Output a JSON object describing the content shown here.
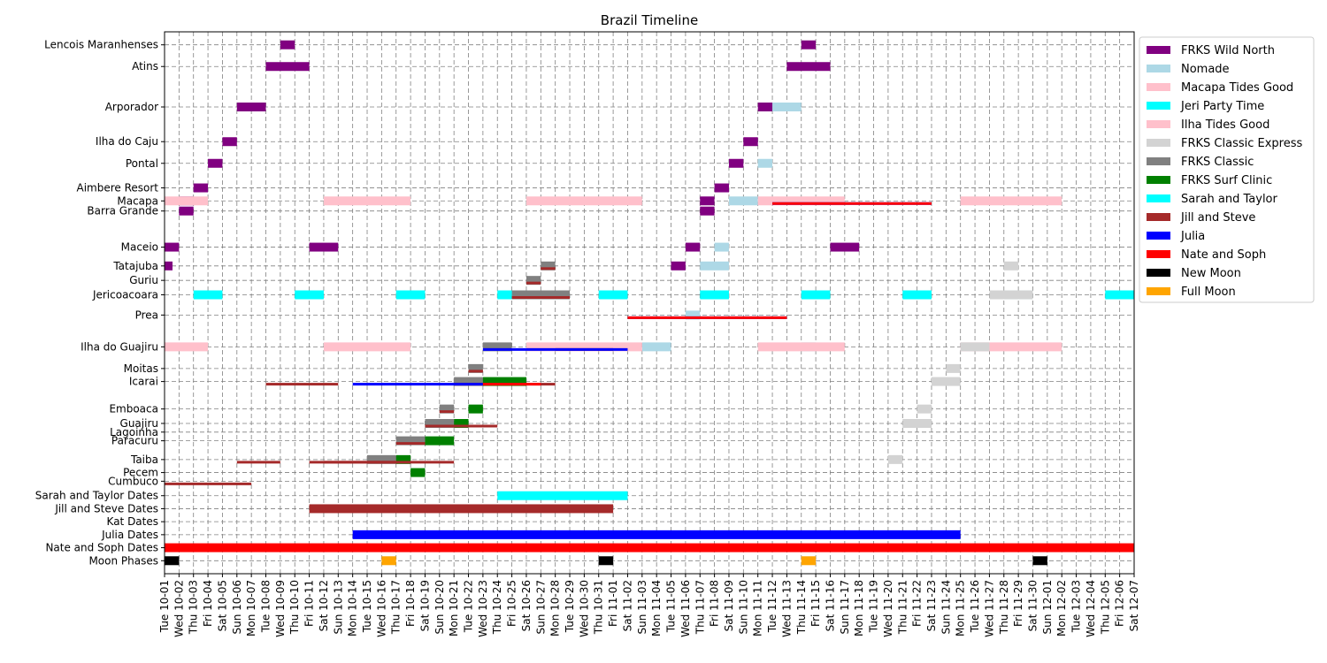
{
  "chart_data": {
    "type": "timeline",
    "title": "Brazil Timeline",
    "x_start": "2024-10-01",
    "x_end": "2024-12-07",
    "grid": true,
    "legend_position": "outside-right",
    "xticks": [
      "Tue 10-01",
      "Wed 10-02",
      "Thu 10-03",
      "Fri 10-04",
      "Sat 10-05",
      "Sun 10-06",
      "Mon 10-07",
      "Tue 10-08",
      "Wed 10-09",
      "Thu 10-10",
      "Fri 10-11",
      "Sat 10-12",
      "Sun 10-13",
      "Mon 10-14",
      "Tue 10-15",
      "Wed 10-16",
      "Thu 10-17",
      "Fri 10-18",
      "Sat 10-19",
      "Sun 10-20",
      "Mon 10-21",
      "Tue 10-22",
      "Wed 10-23",
      "Thu 10-24",
      "Fri 10-25",
      "Sat 10-26",
      "Sun 10-27",
      "Mon 10-28",
      "Tue 10-29",
      "Wed 10-30",
      "Thu 10-31",
      "Fri 11-01",
      "Sat 11-02",
      "Sun 11-03",
      "Mon 11-04",
      "Tue 11-05",
      "Wed 11-06",
      "Thu 11-07",
      "Fri 11-08",
      "Sat 11-09",
      "Sun 11-10",
      "Mon 11-11",
      "Tue 11-12",
      "Wed 11-13",
      "Thu 11-14",
      "Fri 11-15",
      "Sat 11-16",
      "Sun 11-17",
      "Mon 11-18",
      "Tue 11-19",
      "Wed 11-20",
      "Thu 11-21",
      "Fri 11-22",
      "Sat 11-23",
      "Sun 11-24",
      "Mon 11-25",
      "Tue 11-26",
      "Wed 11-27",
      "Thu 11-28",
      "Fri 11-29",
      "Sat 11-30",
      "Sun 12-01",
      "Mon 12-02",
      "Tue 12-03",
      "Wed 12-04",
      "Thu 12-05",
      "Fri 12-06",
      "Sat 12-07"
    ],
    "rows": [
      {
        "label": "Lencois Maranhenses",
        "y": 0.0
      },
      {
        "label": "Atins",
        "y": 1.5
      },
      {
        "label": "Arporador",
        "y": 4.3
      },
      {
        "label": "Ilha do Caju",
        "y": 6.7
      },
      {
        "label": "Pontal",
        "y": 8.2
      },
      {
        "label": "Aimbere Resort",
        "y": 9.9
      },
      {
        "label": "Macapa",
        "y": 10.8
      },
      {
        "label": "Barra Grande",
        "y": 11.5
      },
      {
        "label": "Maceio",
        "y": 14.0
      },
      {
        "label": "Tatajuba",
        "y": 15.3
      },
      {
        "label": "Guriu",
        "y": 16.3
      },
      {
        "label": "Jericoacoara",
        "y": 17.3
      },
      {
        "label": "Prea",
        "y": 18.7
      },
      {
        "label": "Ilha do Guajiru",
        "y": 20.9
      },
      {
        "label": "Moitas",
        "y": 22.4
      },
      {
        "label": "Icarai",
        "y": 23.3
      },
      {
        "label": "Emboaca",
        "y": 25.2
      },
      {
        "label": "Guajiru",
        "y": 26.2
      },
      {
        "label": "Lagoinha",
        "y": 26.8
      },
      {
        "label": "Paracuru",
        "y": 27.4
      },
      {
        "label": "Taiba",
        "y": 28.7
      },
      {
        "label": "Pecem",
        "y": 29.6
      },
      {
        "label": "Cumbuco",
        "y": 30.2
      },
      {
        "label": "Sarah and Taylor Dates",
        "y": 31.2
      },
      {
        "label": "Jill and Steve Dates",
        "y": 32.1
      },
      {
        "label": "Kat Dates",
        "y": 33.0
      },
      {
        "label": "Julia Dates",
        "y": 33.9
      },
      {
        "label": "Nate and Soph Dates",
        "y": 34.8
      },
      {
        "label": "Moon Phases",
        "y": 35.7
      }
    ],
    "legend": [
      {
        "name": "FRKS Wild North",
        "color": "#800080"
      },
      {
        "name": "Nomade",
        "color": "#add8e6"
      },
      {
        "name": "Macapa Tides Good",
        "color": "#ffc0cb"
      },
      {
        "name": "Jeri Party Time",
        "color": "#00ffff"
      },
      {
        "name": "Ilha Tides Good",
        "color": "#ffc0cb"
      },
      {
        "name": "FRKS Classic Express",
        "color": "#d3d3d3"
      },
      {
        "name": "FRKS Classic",
        "color": "#808080"
      },
      {
        "name": "FRKS Surf Clinic",
        "color": "#008000"
      },
      {
        "name": "Sarah and Taylor",
        "color": "#00ffff"
      },
      {
        "name": "Jill and Steve",
        "color": "#a52a2a"
      },
      {
        "name": "Julia",
        "color": "#0000ff"
      },
      {
        "name": "Nate and Soph",
        "color": "#ff0000"
      },
      {
        "name": "New Moon",
        "color": "#000000"
      },
      {
        "name": "Full Moon",
        "color": "#ffa500"
      }
    ],
    "bars": [
      {
        "series": "FRKS Wild North",
        "row": "Lencois Maranhenses",
        "start": "2024-10-09",
        "end": "2024-10-10"
      },
      {
        "series": "FRKS Wild North",
        "row": "Atins",
        "start": "2024-10-08",
        "end": "2024-10-11"
      },
      {
        "series": "FRKS Wild North",
        "row": "Arporador",
        "start": "2024-10-06",
        "end": "2024-10-08"
      },
      {
        "series": "FRKS Wild North",
        "row": "Ilha do Caju",
        "start": "2024-10-05",
        "end": "2024-10-06"
      },
      {
        "series": "FRKS Wild North",
        "row": "Pontal",
        "start": "2024-10-04",
        "end": "2024-10-05"
      },
      {
        "series": "FRKS Wild North",
        "row": "Aimbere Resort",
        "start": "2024-10-03",
        "end": "2024-10-04"
      },
      {
        "series": "FRKS Wild North",
        "row": "Macapa",
        "start": "2024-10-02",
        "end": "2024-10-03"
      },
      {
        "series": "FRKS Wild North",
        "row": "Barra Grande",
        "start": "2024-10-02",
        "end": "2024-10-03"
      },
      {
        "series": "FRKS Wild North",
        "row": "Maceio",
        "start": "2024-10-01",
        "end": "2024-10-02"
      },
      {
        "series": "FRKS Wild North",
        "row": "Maceio",
        "start": "2024-10-11",
        "end": "2024-10-13"
      },
      {
        "series": "FRKS Wild North",
        "row": "Tatajuba",
        "start": "2024-10-01",
        "end": "2024-10-01"
      },
      {
        "series": "FRKS Wild North",
        "row": "Lencois Maranhenses",
        "start": "2024-11-14",
        "end": "2024-11-15"
      },
      {
        "series": "FRKS Wild North",
        "row": "Atins",
        "start": "2024-11-13",
        "end": "2024-11-16"
      },
      {
        "series": "FRKS Wild North",
        "row": "Arporador",
        "start": "2024-11-11",
        "end": "2024-11-13"
      },
      {
        "series": "FRKS Wild North",
        "row": "Ilha do Caju",
        "start": "2024-11-10",
        "end": "2024-11-11"
      },
      {
        "series": "FRKS Wild North",
        "row": "Pontal",
        "start": "2024-11-09",
        "end": "2024-11-10"
      },
      {
        "series": "FRKS Wild North",
        "row": "Aimbere Resort",
        "start": "2024-11-08",
        "end": "2024-11-09"
      },
      {
        "series": "FRKS Wild North",
        "row": "Macapa",
        "start": "2024-11-07",
        "end": "2024-11-08"
      },
      {
        "series": "FRKS Wild North",
        "row": "Barra Grande",
        "start": "2024-11-07",
        "end": "2024-11-08"
      },
      {
        "series": "FRKS Wild North",
        "row": "Maceio",
        "start": "2024-11-06",
        "end": "2024-11-07"
      },
      {
        "series": "FRKS Wild North",
        "row": "Maceio",
        "start": "2024-11-16",
        "end": "2024-11-18"
      },
      {
        "series": "FRKS Wild North",
        "row": "Tatajuba",
        "start": "2024-11-05",
        "end": "2024-11-06"
      },
      {
        "series": "Nomade",
        "row": "Arporador",
        "start": "2024-11-12",
        "end": "2024-11-14"
      },
      {
        "series": "Nomade",
        "row": "Pontal",
        "start": "2024-11-11",
        "end": "2024-11-12"
      },
      {
        "series": "Nomade",
        "row": "Macapa",
        "start": "2024-11-09",
        "end": "2024-11-11"
      },
      {
        "series": "Nomade",
        "row": "Maceio",
        "start": "2024-11-08",
        "end": "2024-11-09"
      },
      {
        "series": "Nomade",
        "row": "Tatajuba",
        "start": "2024-11-07",
        "end": "2024-11-09"
      },
      {
        "series": "Nomade",
        "row": "Prea",
        "start": "2024-11-06",
        "end": "2024-11-07"
      },
      {
        "series": "Nomade",
        "row": "Ilha do Guajiru",
        "start": "2024-11-03",
        "end": "2024-11-05"
      },
      {
        "series": "Nomade",
        "row": "Ilha do Guajiru",
        "start": "2024-11-14",
        "end": "2024-11-15"
      },
      {
        "series": "Macapa Tides Good",
        "row": "Macapa",
        "start": "2024-10-01",
        "end": "2024-10-04"
      },
      {
        "series": "Macapa Tides Good",
        "row": "Macapa",
        "start": "2024-10-12",
        "end": "2024-10-18"
      },
      {
        "series": "Macapa Tides Good",
        "row": "Macapa",
        "start": "2024-10-26",
        "end": "2024-11-03"
      },
      {
        "series": "Macapa Tides Good",
        "row": "Macapa",
        "start": "2024-11-11",
        "end": "2024-11-17"
      },
      {
        "series": "Macapa Tides Good",
        "row": "Macapa",
        "start": "2024-11-25",
        "end": "2024-12-02"
      },
      {
        "series": "Ilha Tides Good",
        "row": "Ilha do Guajiru",
        "start": "2024-10-01",
        "end": "2024-10-04"
      },
      {
        "series": "Ilha Tides Good",
        "row": "Ilha do Guajiru",
        "start": "2024-10-12",
        "end": "2024-10-18"
      },
      {
        "series": "Ilha Tides Good",
        "row": "Ilha do Guajiru",
        "start": "2024-10-26",
        "end": "2024-11-03"
      },
      {
        "series": "Ilha Tides Good",
        "row": "Ilha do Guajiru",
        "start": "2024-11-11",
        "end": "2024-11-17"
      },
      {
        "series": "Ilha Tides Good",
        "row": "Ilha do Guajiru",
        "start": "2024-11-25",
        "end": "2024-12-02"
      },
      {
        "series": "Jeri Party Time",
        "row": "Jericoacoara",
        "start": "2024-10-03",
        "end": "2024-10-05"
      },
      {
        "series": "Jeri Party Time",
        "row": "Jericoacoara",
        "start": "2024-10-10",
        "end": "2024-10-12"
      },
      {
        "series": "Jeri Party Time",
        "row": "Jericoacoara",
        "start": "2024-10-17",
        "end": "2024-10-19"
      },
      {
        "series": "Jeri Party Time",
        "row": "Jericoacoara",
        "start": "2024-10-24",
        "end": "2024-10-26"
      },
      {
        "series": "Jeri Party Time",
        "row": "Jericoacoara",
        "start": "2024-10-31",
        "end": "2024-11-02"
      },
      {
        "series": "Jeri Party Time",
        "row": "Jericoacoara",
        "start": "2024-11-07",
        "end": "2024-11-09"
      },
      {
        "series": "Jeri Party Time",
        "row": "Jericoacoara",
        "start": "2024-11-14",
        "end": "2024-11-16"
      },
      {
        "series": "Jeri Party Time",
        "row": "Jericoacoara",
        "start": "2024-11-21",
        "end": "2024-11-23"
      },
      {
        "series": "Jeri Party Time",
        "row": "Jericoacoara",
        "start": "2024-11-28",
        "end": "2024-11-30"
      },
      {
        "series": "Jeri Party Time",
        "row": "Jericoacoara",
        "start": "2024-12-05",
        "end": "2024-12-07"
      },
      {
        "series": "FRKS Classic",
        "row": "Tatajuba",
        "start": "2024-10-27",
        "end": "2024-10-28"
      },
      {
        "series": "FRKS Classic",
        "row": "Guriu",
        "start": "2024-10-26",
        "end": "2024-10-27"
      },
      {
        "series": "FRKS Classic",
        "row": "Jericoacoara",
        "start": "2024-10-25",
        "end": "2024-10-29"
      },
      {
        "series": "FRKS Classic",
        "row": "Ilha do Guajiru",
        "start": "2024-10-23",
        "end": "2024-10-25"
      },
      {
        "series": "FRKS Classic",
        "row": "Moitas",
        "start": "2024-10-22",
        "end": "2024-10-23"
      },
      {
        "series": "FRKS Classic",
        "row": "Icarai",
        "start": "2024-10-21",
        "end": "2024-10-23"
      },
      {
        "series": "FRKS Classic",
        "row": "Emboaca",
        "start": "2024-10-20",
        "end": "2024-10-21"
      },
      {
        "series": "FRKS Classic",
        "row": "Guajiru",
        "start": "2024-10-19",
        "end": "2024-10-21"
      },
      {
        "series": "FRKS Classic",
        "row": "Paracuru",
        "start": "2024-10-17",
        "end": "2024-10-19"
      },
      {
        "series": "FRKS Classic",
        "row": "Taiba",
        "start": "2024-10-15",
        "end": "2024-10-17"
      },
      {
        "series": "FRKS Classic Express",
        "row": "Tatajuba",
        "start": "2024-11-28",
        "end": "2024-11-29"
      },
      {
        "series": "FRKS Classic Express",
        "row": "Jericoacoara",
        "start": "2024-11-27",
        "end": "2024-11-30"
      },
      {
        "series": "FRKS Classic Express",
        "row": "Ilha do Guajiru",
        "start": "2024-11-25",
        "end": "2024-11-27"
      },
      {
        "series": "FRKS Classic Express",
        "row": "Moitas",
        "start": "2024-11-24",
        "end": "2024-11-25"
      },
      {
        "series": "FRKS Classic Express",
        "row": "Icarai",
        "start": "2024-11-23",
        "end": "2024-11-25"
      },
      {
        "series": "FRKS Classic Express",
        "row": "Emboaca",
        "start": "2024-11-22",
        "end": "2024-11-23"
      },
      {
        "series": "FRKS Classic Express",
        "row": "Guajiru",
        "start": "2024-11-21",
        "end": "2024-11-23"
      },
      {
        "series": "FRKS Classic Express",
        "row": "Taiba",
        "start": "2024-11-20",
        "end": "2024-11-21"
      },
      {
        "series": "FRKS Surf Clinic",
        "row": "Icarai",
        "start": "2024-10-23",
        "end": "2024-10-26"
      },
      {
        "series": "FRKS Surf Clinic",
        "row": "Emboaca",
        "start": "2024-10-22",
        "end": "2024-10-23"
      },
      {
        "series": "FRKS Surf Clinic",
        "row": "Guajiru",
        "start": "2024-10-21",
        "end": "2024-10-22"
      },
      {
        "series": "FRKS Surf Clinic",
        "row": "Paracuru",
        "start": "2024-10-19",
        "end": "2024-10-21"
      },
      {
        "series": "FRKS Surf Clinic",
        "row": "Taiba",
        "start": "2024-10-17",
        "end": "2024-10-18"
      },
      {
        "series": "FRKS Surf Clinic",
        "row": "Pecem",
        "start": "2024-10-18",
        "end": "2024-10-19"
      },
      {
        "series": "Jill and Steve",
        "row": "Tatajuba",
        "start": "2024-10-27",
        "end": "2024-10-28",
        "thin": true
      },
      {
        "series": "Jill and Steve",
        "row": "Guriu",
        "start": "2024-10-26",
        "end": "2024-10-27",
        "thin": true
      },
      {
        "series": "Jill and Steve",
        "row": "Jericoacoara",
        "start": "2024-10-25",
        "end": "2024-10-29",
        "thin": true
      },
      {
        "series": "Jill and Steve",
        "row": "Ilha do Guajiru",
        "start": "2024-10-28",
        "end": "2024-11-01",
        "thin": true
      },
      {
        "series": "Jill and Steve",
        "row": "Moitas",
        "start": "2024-10-22",
        "end": "2024-10-23",
        "thin": true
      },
      {
        "series": "Jill and Steve",
        "row": "Icarai",
        "start": "2024-10-08",
        "end": "2024-10-13",
        "thin": true
      },
      {
        "series": "Jill and Steve",
        "row": "Icarai",
        "start": "2024-10-21",
        "end": "2024-10-28",
        "thin": true
      },
      {
        "series": "Jill and Steve",
        "row": "Emboaca",
        "start": "2024-10-20",
        "end": "2024-10-21",
        "thin": true
      },
      {
        "series": "Jill and Steve",
        "row": "Guajiru",
        "start": "2024-10-19",
        "end": "2024-10-24",
        "thin": true
      },
      {
        "series": "Jill and Steve",
        "row": "Paracuru",
        "start": "2024-10-17",
        "end": "2024-10-19",
        "thin": true
      },
      {
        "series": "Jill and Steve",
        "row": "Taiba",
        "start": "2024-10-06",
        "end": "2024-10-09",
        "thin": true
      },
      {
        "series": "Jill and Steve",
        "row": "Taiba",
        "start": "2024-10-12",
        "end": "2024-10-21",
        "thin": true
      },
      {
        "series": "Jill and Steve",
        "row": "Taiba",
        "start": "2024-10-11",
        "end": "2024-10-17",
        "thin": true
      },
      {
        "series": "Jill and Steve",
        "row": "Cumbuco",
        "start": "2024-10-01",
        "end": "2024-10-07",
        "thin": true
      },
      {
        "series": "Julia",
        "row": "Macapa",
        "start": "2024-11-12",
        "end": "2024-11-23",
        "thin": true
      },
      {
        "series": "Julia",
        "row": "Prea",
        "start": "2024-11-02",
        "end": "2024-11-13",
        "thin": true
      },
      {
        "series": "Julia",
        "row": "Ilha do Guajiru",
        "start": "2024-10-23",
        "end": "2024-11-02",
        "thin": true
      },
      {
        "series": "Julia",
        "row": "Icarai",
        "start": "2024-10-14",
        "end": "2024-10-23",
        "thin": true
      },
      {
        "series": "Nate and Soph",
        "row": "Macapa",
        "start": "2024-11-12",
        "end": "2024-11-23",
        "thin": true
      },
      {
        "series": "Nate and Soph",
        "row": "Prea",
        "start": "2024-11-02",
        "end": "2024-11-13",
        "thin": true
      },
      {
        "series": "Nate and Soph",
        "row": "Icarai",
        "start": "2024-10-23",
        "end": "2024-10-27",
        "thin": true
      },
      {
        "series": "Sarah and Taylor",
        "row": "Sarah and Taylor Dates",
        "start": "2024-10-24",
        "end": "2024-11-02"
      },
      {
        "series": "Jill and Steve",
        "row": "Jill and Steve Dates",
        "start": "2024-10-11",
        "end": "2024-11-01"
      },
      {
        "series": "Julia",
        "row": "Julia Dates",
        "start": "2024-10-14",
        "end": "2024-11-25"
      },
      {
        "series": "Nate and Soph",
        "row": "Nate and Soph Dates",
        "start": "2024-09-30",
        "end": "2024-12-08"
      },
      {
        "series": "New Moon",
        "row": "Moon Phases",
        "start": "2024-10-01",
        "end": "2024-10-02"
      },
      {
        "series": "Full Moon",
        "row": "Moon Phases",
        "start": "2024-10-16",
        "end": "2024-10-17"
      },
      {
        "series": "New Moon",
        "row": "Moon Phases",
        "start": "2024-10-31",
        "end": "2024-11-01"
      },
      {
        "series": "Full Moon",
        "row": "Moon Phases",
        "start": "2024-11-14",
        "end": "2024-11-15"
      },
      {
        "series": "New Moon",
        "row": "Moon Phases",
        "start": "2024-11-30",
        "end": "2024-12-01"
      }
    ]
  }
}
